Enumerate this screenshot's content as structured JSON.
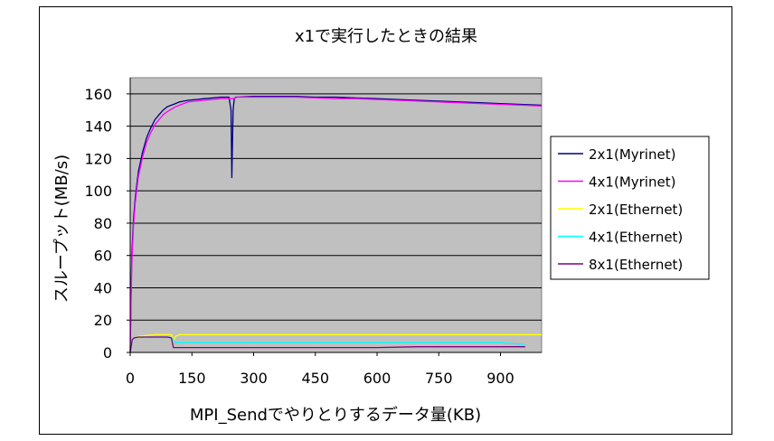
{
  "chart_data": {
    "type": "line",
    "title": "x1で実行したときの結果",
    "xlabel": "MPI_Sendでやりとりするデータ量(KB)",
    "ylabel": "スループット(MB/s)",
    "xlim": [
      0,
      1000
    ],
    "ylim": [
      0,
      170
    ],
    "x_ticks": [
      0,
      150,
      300,
      450,
      600,
      750,
      900
    ],
    "y_ticks": [
      0,
      20,
      40,
      60,
      80,
      100,
      120,
      140,
      160
    ],
    "plot_background": "#c0c0c0",
    "grid": "horizontal",
    "legend_position": "right",
    "series": [
      {
        "name": "2x1(Myrinet)",
        "color": "#000080",
        "x": [
          0,
          2,
          4,
          8,
          12,
          16,
          20,
          30,
          40,
          50,
          60,
          70,
          80,
          90,
          100,
          110,
          120,
          130,
          140,
          160,
          180,
          200,
          220,
          240,
          245,
          247,
          250,
          253,
          256,
          260,
          300,
          350,
          400,
          450,
          500,
          550,
          600,
          650,
          700,
          750,
          800,
          850,
          900,
          950,
          1000
        ],
        "y": [
          0,
          35,
          60,
          82,
          95,
          104,
          112,
          124,
          133,
          139,
          144,
          147,
          150,
          152,
          153,
          154,
          155,
          155.5,
          156,
          156.5,
          157,
          157.5,
          158,
          158,
          150,
          108,
          150,
          157,
          158,
          158,
          158.5,
          158.5,
          158.5,
          158,
          158,
          157.5,
          157,
          156.5,
          156,
          155.5,
          155,
          154.5,
          154,
          153.5,
          153
        ]
      },
      {
        "name": "4x1(Myrinet)",
        "color": "#ff00ff",
        "x": [
          0,
          2,
          4,
          8,
          12,
          16,
          20,
          30,
          40,
          50,
          60,
          70,
          80,
          90,
          100,
          110,
          120,
          130,
          140,
          160,
          180,
          200,
          220,
          240,
          250,
          255,
          260,
          300,
          350,
          400,
          450,
          500,
          550,
          600,
          650,
          700,
          750,
          800,
          850,
          900,
          950,
          1000
        ],
        "y": [
          0,
          30,
          55,
          78,
          92,
          101,
          109,
          121,
          130,
          136,
          141,
          144,
          147,
          149,
          150.5,
          152,
          153,
          154,
          155,
          155.5,
          156,
          156.5,
          157,
          157,
          157,
          157.5,
          158,
          158,
          158,
          158,
          157.5,
          157,
          157,
          156.5,
          156,
          155.5,
          155,
          154.5,
          154,
          153.5,
          153,
          152.5
        ]
      },
      {
        "name": "2x1(Ethernet)",
        "color": "#ffff00",
        "x": [
          0,
          5,
          10,
          20,
          40,
          60,
          80,
          90,
          100,
          105,
          110,
          120,
          150,
          200,
          300,
          400,
          500,
          600,
          700,
          800,
          900,
          1000
        ],
        "y": [
          0,
          8,
          9,
          10,
          10.5,
          11,
          11,
          11,
          11,
          7,
          10,
          11,
          11,
          11,
          11,
          11,
          11,
          11,
          11,
          11,
          11,
          11
        ]
      },
      {
        "name": "4x1(Ethernet)",
        "color": "#00ffff",
        "x": [
          0,
          5,
          10,
          20,
          40,
          60,
          80,
          90,
          100,
          110,
          150,
          200,
          300,
          400,
          500,
          600,
          700,
          800,
          900,
          960
        ],
        "y": [
          0,
          8,
          9,
          9.5,
          9.5,
          9.5,
          9.5,
          9.5,
          9,
          6,
          6,
          6,
          6,
          6,
          6,
          6,
          6,
          6,
          6,
          5
        ]
      },
      {
        "name": "8x1(Ethernet)",
        "color": "#800080",
        "x": [
          0,
          5,
          10,
          20,
          40,
          60,
          80,
          90,
          100,
          105,
          110,
          150,
          200,
          300,
          400,
          500,
          600,
          700,
          800,
          900,
          960
        ],
        "y": [
          0,
          8,
          9,
          9.5,
          9.5,
          9.5,
          9.5,
          9.5,
          9,
          3,
          3,
          3,
          3,
          3,
          3,
          3,
          3,
          3.5,
          3.5,
          3.5,
          3.5
        ]
      }
    ]
  }
}
